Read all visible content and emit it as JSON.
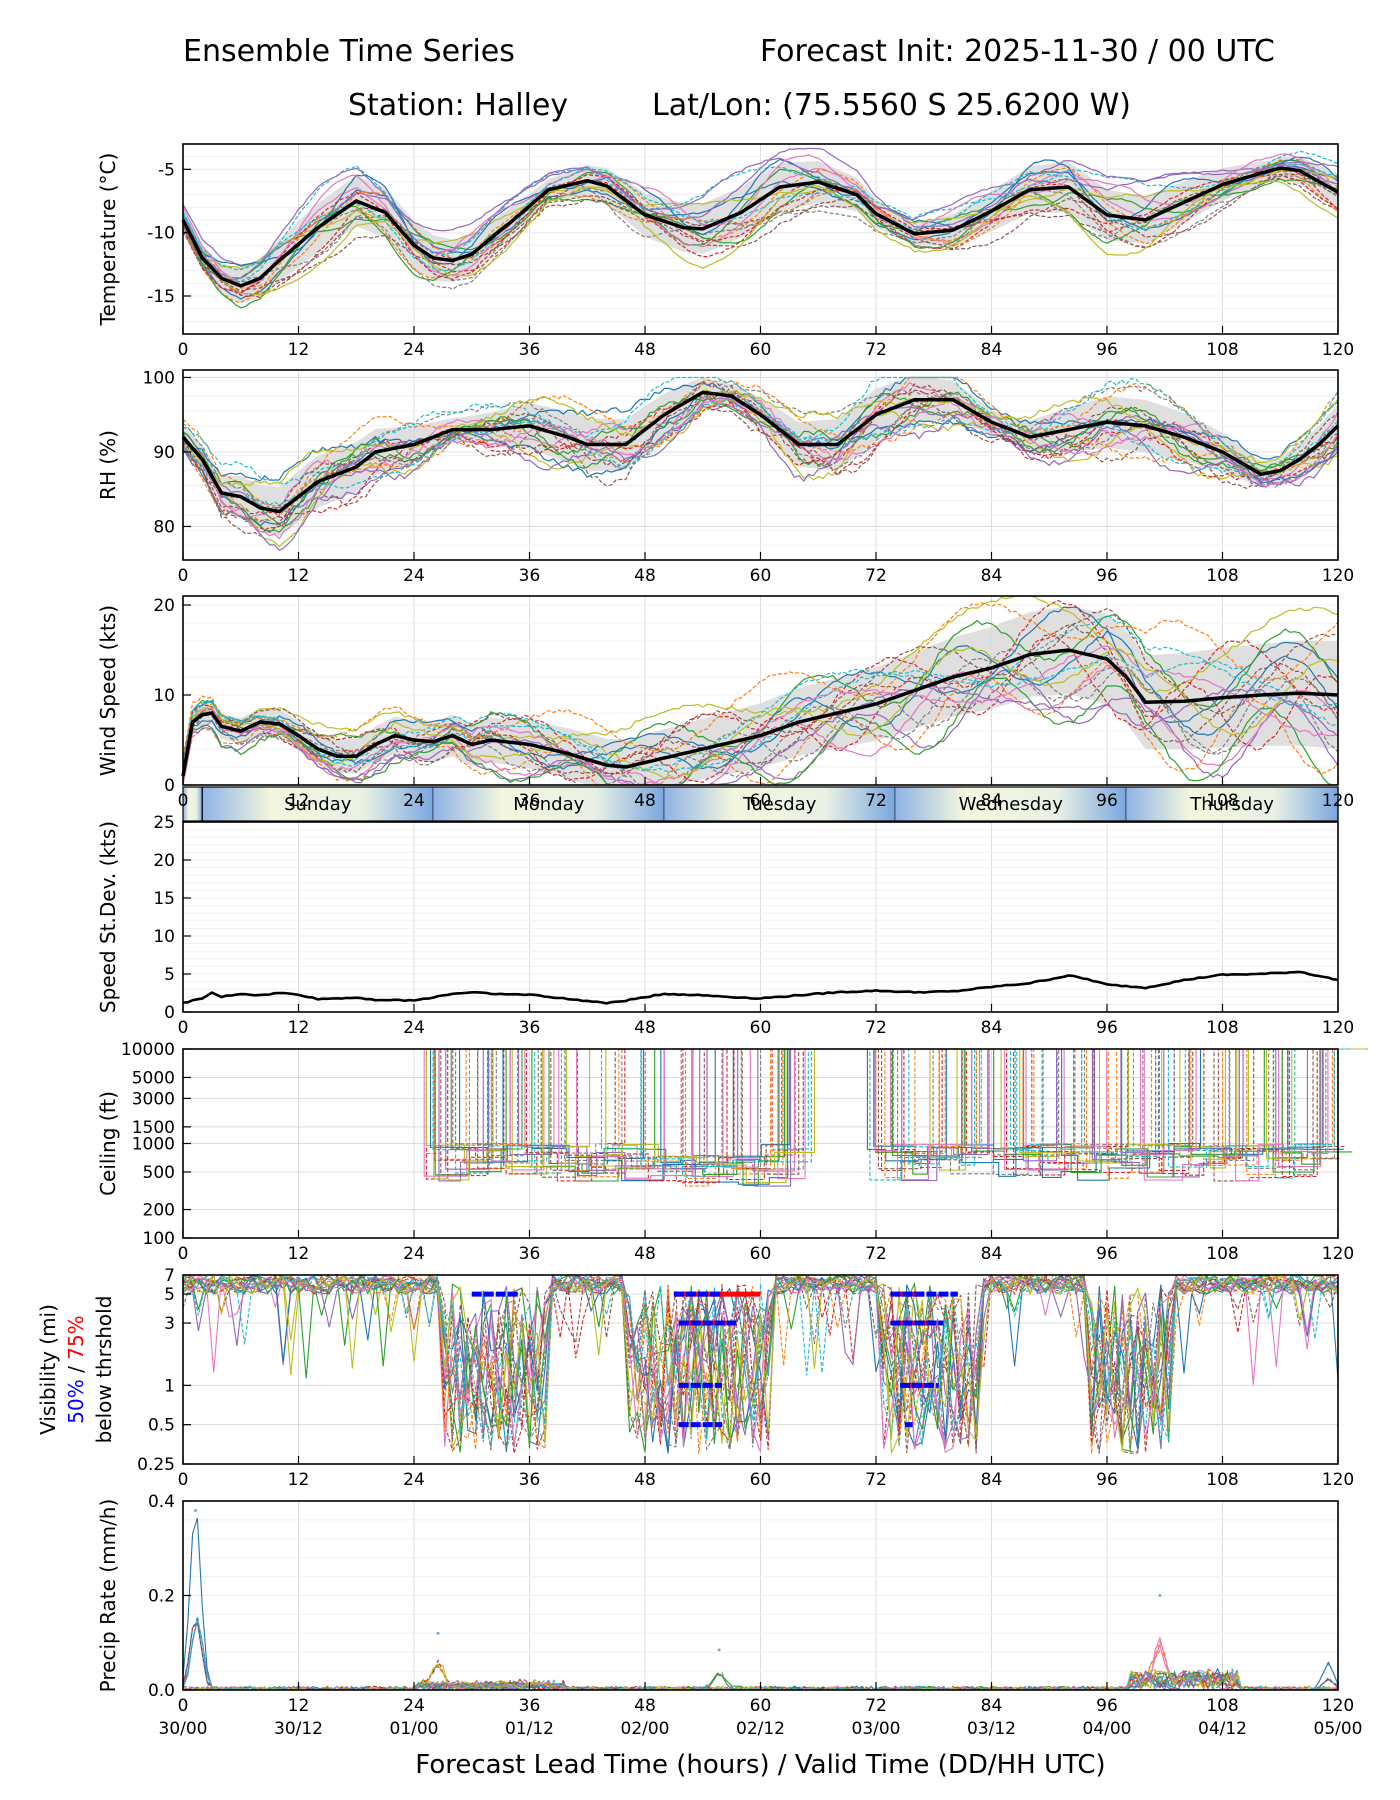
{
  "header": {
    "title_left": "Ensemble Time Series",
    "title_right": "Forecast Init: 2025-11-30 / 00 UTC",
    "station": "Station: Halley",
    "latlon": "Lat/Lon: (75.5560 S 25.6200 W)"
  },
  "chart_data": [
    {
      "type": "line",
      "id": "temperature",
      "ylabel": "Temperature (°C)",
      "ylim": [
        -18,
        -3
      ],
      "yticks": [
        -5,
        -10,
        -15
      ],
      "xlim": [
        0,
        120
      ],
      "xticks": [
        0,
        12,
        24,
        36,
        48,
        60,
        72,
        84,
        96,
        108,
        120
      ],
      "ensemble_members": 20,
      "mean": {
        "x": [
          0,
          2,
          4,
          6,
          8,
          10,
          14,
          18,
          21,
          24,
          26,
          28,
          30,
          34,
          38,
          42,
          44,
          48,
          52,
          54,
          58,
          62,
          66,
          70,
          72,
          76,
          80,
          84,
          88,
          92,
          96,
          100,
          104,
          108,
          112,
          114,
          116,
          120
        ],
        "y": [
          -9,
          -12,
          -13.6,
          -14.2,
          -13.6,
          -12.2,
          -9.6,
          -7.5,
          -8.4,
          -11,
          -12,
          -12.2,
          -11.7,
          -9.2,
          -6.6,
          -5.9,
          -6.3,
          -8.6,
          -9.6,
          -9.7,
          -8.4,
          -6.4,
          -6,
          -7,
          -8.5,
          -10.1,
          -9.8,
          -8.3,
          -6.6,
          -6.4,
          -8.6,
          -9,
          -7.6,
          -6.2,
          -5.3,
          -4.9,
          -5.1,
          -6.8
        ]
      }
    },
    {
      "type": "line",
      "id": "rh",
      "ylabel": "RH (%)",
      "ylim": [
        75.5,
        101
      ],
      "yticks": [
        80,
        90,
        100
      ],
      "xlim": [
        0,
        120
      ],
      "xticks": [
        0,
        12,
        24,
        36,
        48,
        60,
        72,
        84,
        96,
        108,
        120
      ],
      "ensemble_members": 20,
      "mean": {
        "x": [
          0,
          2,
          4,
          6,
          8,
          10,
          12,
          14,
          18,
          20,
          24,
          28,
          32,
          36,
          40,
          42,
          46,
          50,
          54,
          57,
          60,
          64,
          68,
          72,
          76,
          80,
          84,
          88,
          92,
          96,
          100,
          104,
          108,
          112,
          114,
          116,
          118,
          120
        ],
        "y": [
          92,
          89,
          84.5,
          84,
          82.5,
          82,
          84,
          86,
          88,
          90,
          91,
          93,
          93,
          93.5,
          92,
          91,
          91,
          95,
          98,
          97.5,
          95,
          91,
          91,
          95,
          97,
          97,
          94,
          92,
          93,
          94,
          93.5,
          92,
          90,
          87,
          87.5,
          89,
          91,
          93.5
        ]
      }
    },
    {
      "type": "line",
      "id": "wind",
      "ylabel": "Wind Speed (kts)",
      "ylim": [
        0,
        21
      ],
      "yticks": [
        0,
        10,
        20
      ],
      "xlim": [
        0,
        120
      ],
      "xticks": [
        0,
        12,
        24,
        36,
        48,
        60,
        72,
        84,
        96,
        108,
        120
      ],
      "ensemble_members": 20,
      "mean": {
        "x": [
          0,
          1,
          2,
          3,
          4,
          6,
          8,
          10,
          12,
          14,
          16,
          18,
          20,
          22,
          24,
          26,
          28,
          30,
          32,
          36,
          40,
          44,
          46,
          48,
          52,
          56,
          60,
          64,
          68,
          72,
          76,
          80,
          84,
          88,
          92,
          96,
          98,
          100,
          104,
          108,
          112,
          116,
          120
        ],
        "y": [
          1,
          7,
          7.8,
          8,
          6.5,
          6,
          7,
          6.8,
          5.5,
          4,
          3.2,
          3.2,
          4.5,
          5.5,
          5,
          4.8,
          5.5,
          4.5,
          5,
          4.5,
          3.5,
          2.2,
          2,
          2.5,
          3.5,
          4.5,
          5.5,
          7,
          8,
          9,
          10.5,
          12,
          13,
          14.5,
          15,
          14,
          12,
          9.2,
          9.3,
          9.7,
          10,
          10.2,
          10
        ]
      },
      "day_band": [
        "Sunday",
        "Monday",
        "Tuesday",
        "Wednesday",
        "Thursday"
      ]
    },
    {
      "type": "line",
      "id": "speed_stdev",
      "ylabel": "Speed St.Dev. (kts)",
      "ylim": [
        0,
        25
      ],
      "yticks": [
        0,
        5,
        10,
        15,
        20,
        25
      ],
      "xlim": [
        0,
        120
      ],
      "xticks": [
        0,
        12,
        24,
        36,
        48,
        60,
        72,
        84,
        96,
        108,
        120
      ],
      "x": [
        0,
        2,
        3,
        4,
        6,
        8,
        10,
        12,
        14,
        18,
        20,
        24,
        28,
        30,
        34,
        36,
        40,
        44,
        46,
        50,
        54,
        58,
        60,
        64,
        68,
        72,
        76,
        80,
        84,
        88,
        92,
        94,
        96,
        100,
        104,
        108,
        112,
        116,
        120
      ],
      "y": [
        1.2,
        1.8,
        2.5,
        2.0,
        2.4,
        2.2,
        2.5,
        2.3,
        1.7,
        1.9,
        1.6,
        1.5,
        2.4,
        2.6,
        2.3,
        2.3,
        1.7,
        1.2,
        1.5,
        2.4,
        2.2,
        1.9,
        1.8,
        2.2,
        2.6,
        2.8,
        2.6,
        2.7,
        3.3,
        3.8,
        4.8,
        4.3,
        3.6,
        3.2,
        4.2,
        4.9,
        5.0,
        5.3,
        4.2
      ]
    },
    {
      "type": "line",
      "id": "ceiling",
      "ylabel": "Ceiling (ft)",
      "yscale": "log",
      "ylim": [
        100,
        10000
      ],
      "yticks": [
        "10000",
        "5000",
        "3000",
        "1500",
        "1000",
        "500",
        "200",
        "100"
      ],
      "xlim": [
        0,
        120
      ],
      "xticks": [
        0,
        12,
        24,
        36,
        48,
        60,
        72,
        84,
        96,
        108,
        120
      ],
      "ensemble_members": 20
    },
    {
      "type": "line",
      "id": "visibility",
      "ylabel": "Visibility (mi)",
      "ylabel2_a": "50%",
      "ylabel2_sep": " / ",
      "ylabel2_b": "75%",
      "ylabel3": "below thrshold",
      "yscale": "log",
      "ylim": [
        0.25,
        7
      ],
      "yticks": [
        "7",
        "5",
        "3",
        "1",
        "0.5",
        "0.25"
      ],
      "xlim": [
        0,
        120
      ],
      "xticks": [
        0,
        12,
        24,
        36,
        48,
        60,
        72,
        84,
        96,
        108,
        120
      ],
      "ensemble_members": 20,
      "threshold_50": [
        {
          "level": 5,
          "start": 30,
          "end": 35
        },
        {
          "level": 5,
          "start": 51,
          "end": 56
        },
        {
          "level": 3,
          "start": 51.5,
          "end": 57.5
        },
        {
          "level": 1,
          "start": 51.5,
          "end": 56
        },
        {
          "level": 0.5,
          "start": 51.5,
          "end": 56
        },
        {
          "level": 5,
          "start": 73.5,
          "end": 80.5
        },
        {
          "level": 3,
          "start": 73.5,
          "end": 79
        },
        {
          "level": 1,
          "start": 74.5,
          "end": 78.5
        },
        {
          "level": 0.5,
          "start": 75,
          "end": 75.8
        }
      ],
      "threshold_75": [
        {
          "level": 5,
          "start": 51,
          "end": 60
        },
        {
          "level": 3,
          "start": 51.5,
          "end": 56.5
        },
        {
          "level": 5,
          "start": 74,
          "end": 77
        },
        {
          "level": 3,
          "start": 74,
          "end": 78
        },
        {
          "level": 1,
          "start": 74.5,
          "end": 77
        }
      ]
    },
    {
      "type": "line",
      "id": "precip",
      "ylabel": "Precip Rate (mm/h)",
      "ylim": [
        0,
        0.4
      ],
      "yticks": [
        "0.0",
        "0.2",
        "0.4"
      ],
      "xlim": [
        0,
        120
      ],
      "xticks": [
        0,
        12,
        24,
        36,
        48,
        60,
        72,
        84,
        96,
        108,
        120
      ],
      "xticklabels2": [
        "30/00",
        "30/12",
        "01/00",
        "01/12",
        "02/00",
        "02/12",
        "03/00",
        "03/12",
        "04/00",
        "04/12",
        "05/00"
      ],
      "xlabel": "Forecast Lead Time (hours) / Valid Time (DD/HH UTC)",
      "ensemble_members": 20,
      "peaks": [
        {
          "x": 1.3,
          "y": 0.38
        },
        {
          "x": 1.5,
          "y": 0.15
        },
        {
          "x": 26.5,
          "y": 0.12
        },
        {
          "x": 55.7,
          "y": 0.085
        },
        {
          "x": 101.5,
          "y": 0.2
        },
        {
          "x": 119,
          "y": 0.055
        }
      ]
    }
  ]
}
